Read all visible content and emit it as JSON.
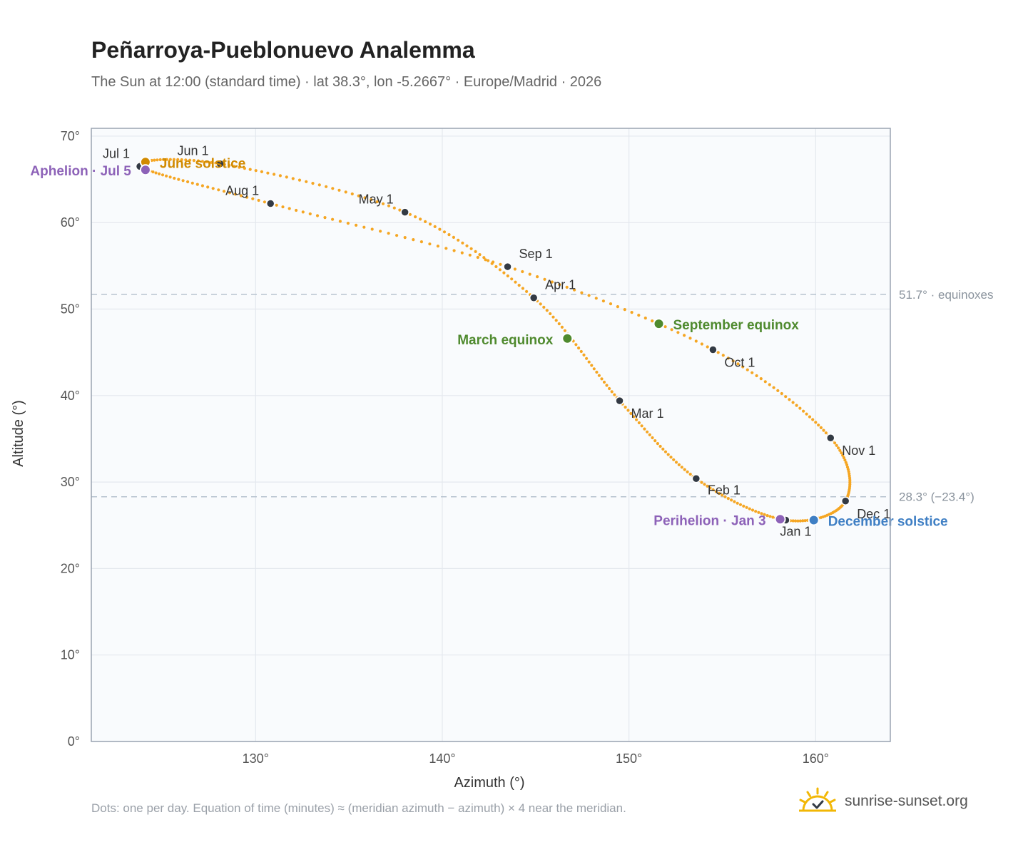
{
  "title": "Peñarroya-Pueblonuevo Analemma",
  "subtitle": "The Sun at 12:00 (standard time) · lat 38.3°, lon -5.2667° · Europe/Madrid · 2026",
  "footnote": "Dots: one per day. Equation of time (minutes) ≈ (meridian azimuth − azimuth) × 4 near the meridian.",
  "brand": {
    "text": "sunrise-sunset.org",
    "icon": "sun-logo-icon"
  },
  "colors": {
    "curve": "#f5a623",
    "month_marker": "#333a44",
    "solstice_june": "#d18a00",
    "solstice_december": "#3f7fc4",
    "equinox": "#4f8a2e",
    "apsis": "#8d62b8",
    "reference_line": "#b7c3cf",
    "plot_background": "#f9fbfd",
    "grid": "#e4e8ee",
    "frame": "#9aa4b2"
  },
  "chart_data": {
    "type": "scatter",
    "xlabel": "Azimuth (°)",
    "ylabel": "Altitude (°)",
    "xlim": [
      121.2,
      164.0
    ],
    "ylim": [
      0,
      70.9
    ],
    "x_ticks": [
      130,
      140,
      150,
      160
    ],
    "x_tick_labels": [
      "130°",
      "140°",
      "150°",
      "160°"
    ],
    "y_ticks": [
      0,
      10,
      20,
      30,
      40,
      50,
      60,
      70
    ],
    "y_tick_labels": [
      "0°",
      "10°",
      "20°",
      "30°",
      "40°",
      "50°",
      "60°",
      "70°"
    ],
    "grid": true,
    "monthly_points": [
      {
        "date": "Jan 1",
        "azimuth": 158.4,
        "altitude": 25.6,
        "label": "Jan 1"
      },
      {
        "date": "Feb 1",
        "azimuth": 153.6,
        "altitude": 30.4,
        "label": "Feb 1"
      },
      {
        "date": "Mar 1",
        "azimuth": 149.5,
        "altitude": 39.4,
        "label": "Mar 1"
      },
      {
        "date": "Apr 1",
        "azimuth": 144.9,
        "altitude": 51.3,
        "label": "Apr 1"
      },
      {
        "date": "May 1",
        "azimuth": 138.0,
        "altitude": 61.2,
        "label": "May 1"
      },
      {
        "date": "Jun 1",
        "azimuth": 128.1,
        "altitude": 66.8,
        "label": "Jun 1"
      },
      {
        "date": "Jul 1",
        "azimuth": 123.8,
        "altitude": 66.5,
        "label": "Jul 1"
      },
      {
        "date": "Aug 1",
        "azimuth": 130.8,
        "altitude": 62.2,
        "label": "Aug 1"
      },
      {
        "date": "Sep 1",
        "azimuth": 143.5,
        "altitude": 54.9,
        "label": "Sep 1"
      },
      {
        "date": "Oct 1",
        "azimuth": 154.5,
        "altitude": 45.3,
        "label": "Oct 1"
      },
      {
        "date": "Nov 1",
        "azimuth": 160.8,
        "altitude": 35.1,
        "label": "Nov 1"
      },
      {
        "date": "Dec 1",
        "azimuth": 161.6,
        "altitude": 27.8,
        "label": "Dec 1"
      }
    ],
    "special_points": [
      {
        "name": "June solstice",
        "azimuth": 124.1,
        "altitude": 67.0,
        "label": "June solstice",
        "color": "#d18a00"
      },
      {
        "name": "Aphelion",
        "azimuth": 124.1,
        "altitude": 66.1,
        "label": "Aphelion · Jul 5",
        "color": "#8d62b8"
      },
      {
        "name": "March equinox",
        "azimuth": 146.7,
        "altitude": 46.6,
        "label": "March equinox",
        "color": "#4f8a2e"
      },
      {
        "name": "September equinox",
        "azimuth": 151.6,
        "altitude": 48.3,
        "label": "September equinox",
        "color": "#4f8a2e"
      },
      {
        "name": "Perihelion",
        "azimuth": 158.1,
        "altitude": 25.7,
        "label": "Perihelion · Jan 3",
        "color": "#8d62b8"
      },
      {
        "name": "December solstice",
        "azimuth": 159.9,
        "altitude": 25.6,
        "label": "December solstice",
        "color": "#3f7fc4"
      }
    ],
    "reference_lines": [
      {
        "altitude": 51.7,
        "label": "51.7° · equinoxes"
      },
      {
        "altitude": 28.3,
        "label": "28.3° (−23.4°)"
      }
    ]
  }
}
